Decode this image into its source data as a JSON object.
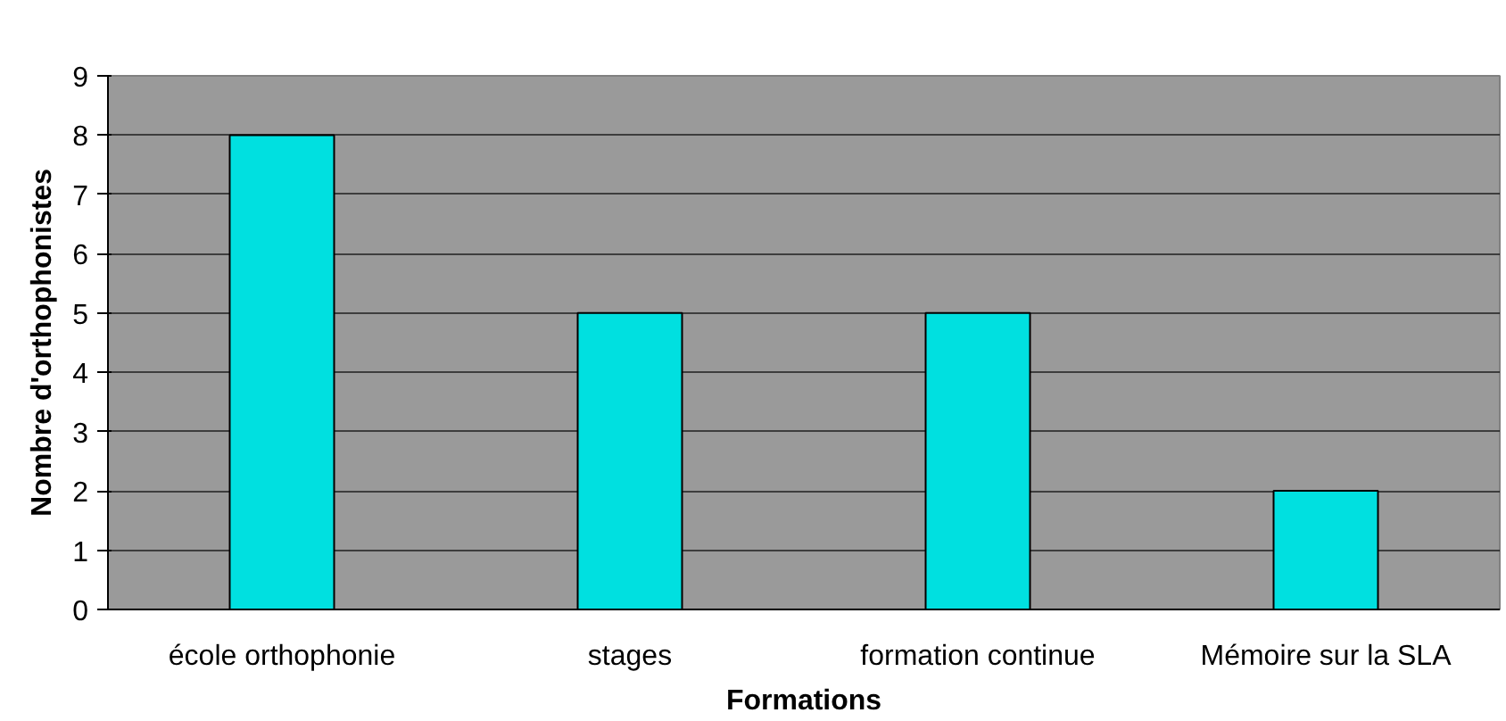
{
  "chart_data": {
    "type": "bar",
    "xlabel": "Formations",
    "ylabel": "Nombre d'orthophonistes",
    "categories": [
      "école orthophonie",
      "stages",
      "formation continue",
      "Mémoire sur la SLA"
    ],
    "values": [
      8,
      5,
      5,
      2
    ],
    "color": "#00e0e0",
    "ylim": [
      0,
      9
    ],
    "yticks": [
      0,
      1,
      2,
      3,
      4,
      5,
      6,
      7,
      8,
      9
    ],
    "grid": "y"
  }
}
